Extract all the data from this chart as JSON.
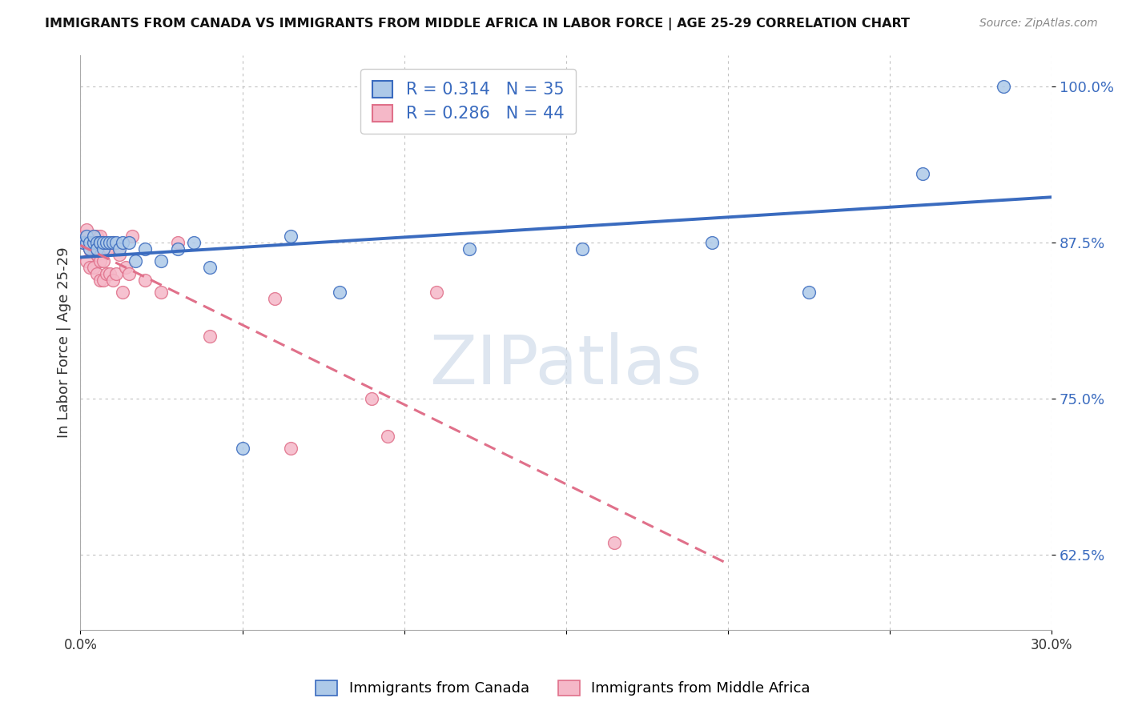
{
  "title": "IMMIGRANTS FROM CANADA VS IMMIGRANTS FROM MIDDLE AFRICA IN LABOR FORCE | AGE 25-29 CORRELATION CHART",
  "source": "Source: ZipAtlas.com",
  "xlabel": "",
  "ylabel": "In Labor Force | Age 25-29",
  "xlim": [
    0.0,
    0.3
  ],
  "ylim": [
    0.565,
    1.025
  ],
  "xticks": [
    0.0,
    0.05,
    0.1,
    0.15,
    0.2,
    0.25,
    0.3
  ],
  "xticklabels": [
    "0.0%",
    "",
    "",
    "",
    "",
    "",
    "30.0%"
  ],
  "yticks": [
    0.625,
    0.75,
    0.875,
    1.0
  ],
  "yticklabels": [
    "62.5%",
    "75.0%",
    "87.5%",
    "100.0%"
  ],
  "canada_R": 0.314,
  "canada_N": 35,
  "africa_R": 0.286,
  "africa_N": 44,
  "canada_color": "#adc9e8",
  "africa_color": "#f5b8c8",
  "canada_line_color": "#3a6bbf",
  "africa_line_color": "#e0708a",
  "canada_x": [
    0.001,
    0.002,
    0.002,
    0.003,
    0.003,
    0.004,
    0.004,
    0.005,
    0.005,
    0.006,
    0.006,
    0.007,
    0.007,
    0.008,
    0.009,
    0.01,
    0.011,
    0.012,
    0.013,
    0.015,
    0.017,
    0.02,
    0.025,
    0.03,
    0.035,
    0.04,
    0.05,
    0.065,
    0.08,
    0.12,
    0.155,
    0.195,
    0.225,
    0.26,
    0.285
  ],
  "canada_y": [
    0.875,
    0.875,
    0.88,
    0.87,
    0.875,
    0.875,
    0.88,
    0.875,
    0.87,
    0.875,
    0.875,
    0.87,
    0.875,
    0.875,
    0.875,
    0.875,
    0.875,
    0.87,
    0.875,
    0.875,
    0.86,
    0.87,
    0.86,
    0.87,
    0.875,
    0.855,
    0.71,
    0.88,
    0.835,
    0.87,
    0.87,
    0.875,
    0.835,
    0.93,
    1.0
  ],
  "africa_x": [
    0.001,
    0.001,
    0.002,
    0.002,
    0.002,
    0.003,
    0.003,
    0.003,
    0.004,
    0.004,
    0.004,
    0.005,
    0.005,
    0.005,
    0.005,
    0.006,
    0.006,
    0.006,
    0.006,
    0.007,
    0.007,
    0.007,
    0.008,
    0.008,
    0.009,
    0.009,
    0.01,
    0.01,
    0.011,
    0.012,
    0.013,
    0.014,
    0.015,
    0.016,
    0.02,
    0.025,
    0.03,
    0.04,
    0.06,
    0.065,
    0.09,
    0.095,
    0.11,
    0.165
  ],
  "africa_y": [
    0.875,
    0.88,
    0.86,
    0.875,
    0.885,
    0.855,
    0.87,
    0.875,
    0.855,
    0.87,
    0.88,
    0.85,
    0.865,
    0.875,
    0.88,
    0.845,
    0.86,
    0.87,
    0.88,
    0.845,
    0.86,
    0.875,
    0.85,
    0.87,
    0.85,
    0.87,
    0.845,
    0.875,
    0.85,
    0.865,
    0.835,
    0.855,
    0.85,
    0.88,
    0.845,
    0.835,
    0.875,
    0.8,
    0.83,
    0.71,
    0.75,
    0.72,
    0.835,
    0.635
  ],
  "background_color": "#ffffff",
  "grid_color": "#cccccc",
  "watermark_zip": "ZIP",
  "watermark_atlas": "atlas",
  "legend_border_color": "#cccccc"
}
